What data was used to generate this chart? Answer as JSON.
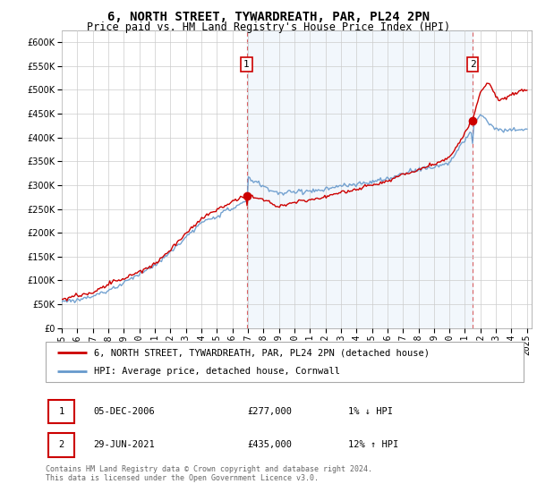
{
  "title": "6, NORTH STREET, TYWARDREATH, PAR, PL24 2PN",
  "subtitle": "Price paid vs. HM Land Registry's House Price Index (HPI)",
  "ylabel_vals": [
    0,
    50000,
    100000,
    150000,
    200000,
    250000,
    300000,
    350000,
    400000,
    450000,
    500000,
    550000,
    600000
  ],
  "ylim": [
    0,
    625000
  ],
  "xlim_start": 1995.0,
  "xlim_end": 2025.3,
  "xtick_years": [
    1995,
    1996,
    1997,
    1998,
    1999,
    2000,
    2001,
    2002,
    2003,
    2004,
    2005,
    2006,
    2007,
    2008,
    2009,
    2010,
    2011,
    2012,
    2013,
    2014,
    2015,
    2016,
    2017,
    2018,
    2019,
    2020,
    2021,
    2022,
    2023,
    2024,
    2025
  ],
  "sale1_x": 2006.92,
  "sale1_y": 277000,
  "sale1_label": "1",
  "sale2_x": 2021.5,
  "sale2_y": 435000,
  "sale2_label": "2",
  "hpi_line_color": "#6699cc",
  "sale_line_color": "#cc0000",
  "fill_color": "#ddeeff",
  "grid_color": "#cccccc",
  "background_color": "#ffffff",
  "legend_property_label": "6, NORTH STREET, TYWARDREATH, PAR, PL24 2PN (detached house)",
  "legend_hpi_label": "HPI: Average price, detached house, Cornwall",
  "table_row1": [
    "1",
    "05-DEC-2006",
    "£277,000",
    "1% ↓ HPI"
  ],
  "table_row2": [
    "2",
    "29-JUN-2021",
    "£435,000",
    "12% ↑ HPI"
  ],
  "footnote": "Contains HM Land Registry data © Crown copyright and database right 2024.\nThis data is licensed under the Open Government Licence v3.0.",
  "title_fontsize": 10,
  "subtitle_fontsize": 8.5,
  "tick_fontsize": 7,
  "legend_fontsize": 7.5,
  "table_fontsize": 7.5,
  "footnote_fontsize": 6
}
